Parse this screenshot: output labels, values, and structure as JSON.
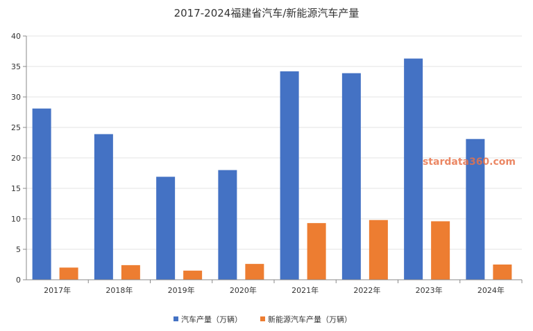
{
  "chart_data": {
    "type": "bar",
    "title": "2017-2024福建省汽车/新能源汽车产量",
    "categories": [
      "2017年",
      "2018年",
      "2019年",
      "2020年",
      "2021年",
      "2022年",
      "2023年",
      "2024年"
    ],
    "series": [
      {
        "name": "汽车产量（万辆）",
        "color": "#4472c4",
        "values": [
          28.1,
          23.9,
          16.9,
          18.0,
          34.2,
          33.9,
          36.3,
          23.1
        ]
      },
      {
        "name": "新能源汽车产量（万辆）",
        "color": "#ed7d31",
        "values": [
          2.0,
          2.4,
          1.5,
          2.6,
          9.3,
          9.8,
          9.6,
          2.5
        ]
      }
    ],
    "ylim": [
      0,
      40
    ],
    "yticks": [
      0,
      5,
      10,
      15,
      20,
      25,
      30,
      35,
      40
    ],
    "grid": true,
    "legend_position": "bottom"
  },
  "watermark": "stardata360.com"
}
